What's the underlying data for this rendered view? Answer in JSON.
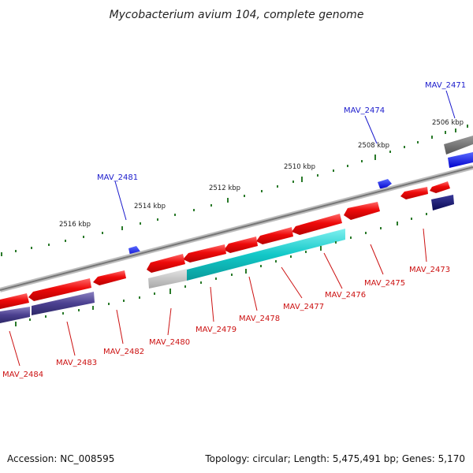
{
  "title": "Mycobacterium avium 104, complete genome",
  "footer": {
    "accession": "Accession: NC_008595",
    "summary": "Topology: circular; Length: 5,475,491 bp; Genes: 5,170"
  },
  "colors": {
    "forward_label": "#1a1acc",
    "reverse_label": "#cc1111",
    "tick": "#2a7a2a",
    "backbone": "#8a8a8a"
  },
  "kbp_labels": [
    "2506 kbp",
    "2508 kbp",
    "2510 kbp",
    "2512 kbp",
    "2514 kbp",
    "2516 kbp"
  ],
  "gene_labels": {
    "forward": [
      "MAV_2471",
      "MAV_2474",
      "MAV_2481"
    ],
    "reverse": [
      "MAV_2473",
      "MAV_2475",
      "MAV_2476",
      "MAV_2477",
      "MAV_2478",
      "MAV_2479",
      "MAV_2480",
      "MAV_2482",
      "MAV_2483",
      "MAV_2484"
    ]
  }
}
